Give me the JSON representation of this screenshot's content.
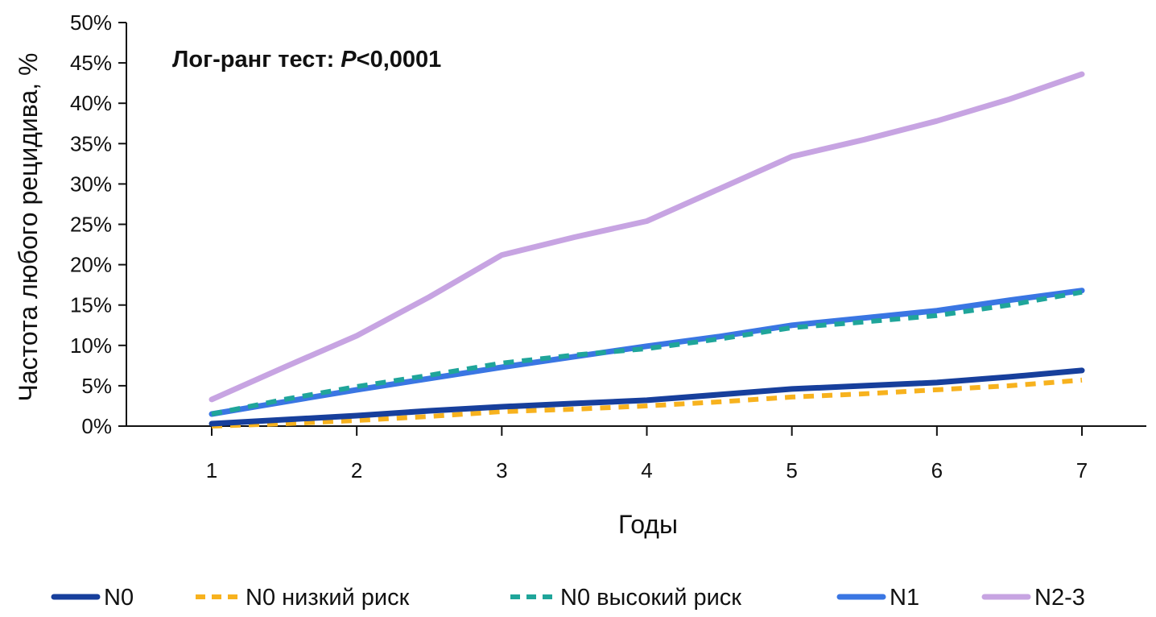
{
  "chart_data": {
    "type": "line",
    "xlabel": "Годы",
    "ylabel": "Частота любого рецидива, %",
    "xlim": [
      1,
      7
    ],
    "ylim": [
      0,
      50
    ],
    "x_ticks": [
      "1",
      "2",
      "3",
      "4",
      "5",
      "6",
      "7"
    ],
    "y_ticks": [
      "0%",
      "5%",
      "10%",
      "15%",
      "20%",
      "25%",
      "30%",
      "35%",
      "40%",
      "45%",
      "50%"
    ],
    "annotation": {
      "prefix": "Лог-ранг тест: ",
      "italic": "P",
      "suffix": "<0,0001"
    },
    "grid": false,
    "legend_position": "bottom",
    "x": [
      1,
      1.5,
      2,
      2.5,
      3,
      3.5,
      4,
      4.5,
      5,
      5.5,
      6,
      6.5,
      7
    ],
    "series": [
      {
        "name": "N0",
        "color": "#173f9c",
        "dashed": false,
        "values": [
          0.3,
          0.8,
          1.3,
          1.9,
          2.4,
          2.8,
          3.2,
          3.9,
          4.6,
          5.0,
          5.4,
          6.1,
          6.9
        ]
      },
      {
        "name": "N0 низкий риск",
        "color": "#f7b21e",
        "dashed": true,
        "values": [
          0.0,
          0.3,
          0.7,
          1.2,
          1.8,
          2.1,
          2.5,
          3.0,
          3.6,
          4.0,
          4.5,
          5.0,
          5.7
        ]
      },
      {
        "name": "N0 высокий риск",
        "color": "#1fa59a",
        "dashed": true,
        "values": [
          1.5,
          3.3,
          4.9,
          6.3,
          7.8,
          8.8,
          9.6,
          10.8,
          12.2,
          12.9,
          13.7,
          15.0,
          16.6
        ]
      },
      {
        "name": "N1",
        "color": "#3a76e3",
        "dashed": false,
        "values": [
          1.5,
          3.0,
          4.5,
          5.9,
          7.3,
          8.6,
          9.9,
          11.1,
          12.5,
          13.4,
          14.3,
          15.6,
          16.8
        ]
      },
      {
        "name": "N2-3",
        "color": "#c7a4e2",
        "dashed": false,
        "values": [
          3.3,
          7.3,
          11.2,
          16.0,
          21.2,
          23.4,
          25.4,
          29.4,
          33.4,
          35.5,
          37.8,
          40.5,
          43.6
        ]
      }
    ]
  }
}
